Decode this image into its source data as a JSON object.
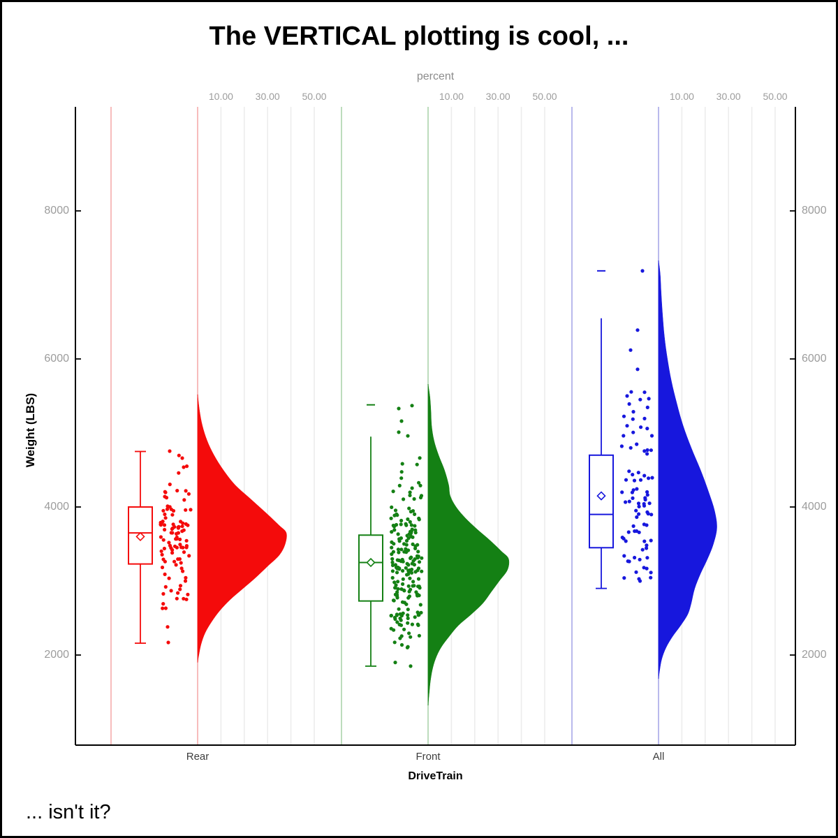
{
  "title": "The VERTICAL plotting is cool, ...",
  "footnote": "... isn't it?",
  "x_axis": {
    "label": "DriveTrain"
  },
  "y_axis": {
    "label": "Weight (LBS)",
    "ticks": [
      {
        "value": 2000,
        "label": "2000"
      },
      {
        "value": 4000,
        "label": "4000"
      },
      {
        "value": 6000,
        "label": "6000"
      },
      {
        "value": 8000,
        "label": "8000"
      }
    ]
  },
  "percent_axis": {
    "label": "percent",
    "ticks": [
      {
        "value": 10,
        "label": "10.00"
      },
      {
        "value": 30,
        "label": "30.00"
      },
      {
        "value": 50,
        "label": "50.00"
      }
    ],
    "gridline_step_pct": 10,
    "gridline_max_pct": 50
  },
  "colors": {
    "axis": "#000000",
    "grid_gray": "#ececec",
    "tick_text": "#9c9c9c",
    "category_text": "#3d3d3d"
  },
  "chart_data": {
    "type": "raincloud (vertical half-violin + box plot + jittered points)",
    "title": "The VERTICAL plotting is cool, ...",
    "xlabel": "DriveTrain",
    "ylabel": "Weight (LBS)",
    "ylim": [
      1200,
      9400
    ],
    "y_ticks": [
      2000,
      4000,
      6000,
      8000
    ],
    "percent_ticks": [
      10,
      30,
      50
    ],
    "categories": [
      "Rear",
      "Front",
      "All"
    ],
    "groups": [
      {
        "label": "Rear",
        "color": "#f40b0b",
        "light_color": "#f7bcbc",
        "n_points": 100,
        "box": {
          "whisker_low": 2160,
          "q1": 3230,
          "median": 3650,
          "q3": 4000,
          "whisker_high": 4750,
          "mean": 3600
        },
        "whisker_caps": {
          "top": true,
          "bottom": true
        },
        "outlier_dashes": [],
        "notable_points": [
          [
            4755,
            -40
          ],
          [
            4660,
            -22
          ],
          [
            2380,
            -43
          ],
          [
            2170,
            -42
          ]
        ],
        "jitter_clamp": [
          2200,
          4700
        ],
        "jitter_seed": 11,
        "violin_profile": [
          [
            5520,
            0
          ],
          [
            5300,
            0.8
          ],
          [
            5100,
            2
          ],
          [
            4900,
            4
          ],
          [
            4700,
            7
          ],
          [
            4500,
            11
          ],
          [
            4300,
            16
          ],
          [
            4100,
            23
          ],
          [
            3900,
            30
          ],
          [
            3750,
            35
          ],
          [
            3650,
            38
          ],
          [
            3500,
            37.5
          ],
          [
            3350,
            35
          ],
          [
            3200,
            30
          ],
          [
            3050,
            25
          ],
          [
            2900,
            19.5
          ],
          [
            2750,
            14
          ],
          [
            2600,
            9.5
          ],
          [
            2450,
            6
          ],
          [
            2300,
            3.2
          ],
          [
            2150,
            1.5
          ],
          [
            2000,
            0.5
          ],
          [
            1900,
            0
          ]
        ]
      },
      {
        "label": "Front",
        "color": "#148014",
        "light_color": "#bcdcbc",
        "n_points": 200,
        "box": {
          "whisker_low": 1850,
          "q1": 2730,
          "median": 3250,
          "q3": 3620,
          "whisker_high": 4950,
          "mean": 3250
        },
        "whisker_caps": {
          "top": false,
          "bottom": true
        },
        "outlier_dashes": [
          5380
        ],
        "notable_points": [
          [
            5370,
            -23
          ],
          [
            5330,
            -42
          ],
          [
            5160,
            -38
          ],
          [
            5010,
            -42
          ],
          [
            4960,
            -29
          ],
          [
            1850,
            -25
          ],
          [
            1900,
            -47
          ]
        ],
        "jitter_clamp": [
          1950,
          4900
        ],
        "jitter_seed": 22,
        "violin_profile": [
          [
            5660,
            0
          ],
          [
            5480,
            0.8
          ],
          [
            5300,
            1.2
          ],
          [
            5100,
            1.5
          ],
          [
            4900,
            2.5
          ],
          [
            4700,
            4.5
          ],
          [
            4500,
            7
          ],
          [
            4300,
            8.8
          ],
          [
            4150,
            9.5
          ],
          [
            4000,
            12
          ],
          [
            3850,
            16
          ],
          [
            3700,
            21
          ],
          [
            3550,
            26.5
          ],
          [
            3400,
            31.5
          ],
          [
            3300,
            34.5
          ],
          [
            3150,
            34
          ],
          [
            3000,
            30.5
          ],
          [
            2850,
            27
          ],
          [
            2700,
            23.5
          ],
          [
            2550,
            18.5
          ],
          [
            2400,
            13
          ],
          [
            2250,
            9
          ],
          [
            2100,
            5.5
          ],
          [
            1950,
            3.2
          ],
          [
            1800,
            1.8
          ],
          [
            1650,
            1
          ],
          [
            1500,
            0.5
          ],
          [
            1320,
            0
          ]
        ]
      },
      {
        "label": "All",
        "color": "#1717dd",
        "light_color": "#b9b9ec",
        "n_points": 82,
        "box": {
          "whisker_low": 2900,
          "q1": 3450,
          "median": 3900,
          "q3": 4700,
          "whisker_high": 6550,
          "mean": 4150
        },
        "whisker_caps": {
          "top": false,
          "bottom": true
        },
        "outlier_dashes": [
          7190
        ],
        "notable_points": [
          [
            7190,
            -23
          ],
          [
            6390,
            -30
          ],
          [
            6120,
            -40
          ],
          [
            5860,
            -30
          ],
          [
            5550,
            -20
          ],
          [
            5500,
            -45
          ]
        ],
        "jitter_clamp": [
          2950,
          5600
        ],
        "jitter_seed": 33,
        "violin_profile": [
          [
            7330,
            0
          ],
          [
            7150,
            0.7
          ],
          [
            6900,
            1.1
          ],
          [
            6600,
            1.7
          ],
          [
            6300,
            2.5
          ],
          [
            6000,
            3.8
          ],
          [
            5700,
            5.5
          ],
          [
            5400,
            7.8
          ],
          [
            5100,
            10.5
          ],
          [
            4800,
            14
          ],
          [
            4500,
            18
          ],
          [
            4200,
            21.5
          ],
          [
            3950,
            24
          ],
          [
            3720,
            25
          ],
          [
            3500,
            23.5
          ],
          [
            3300,
            21
          ],
          [
            3100,
            18
          ],
          [
            2900,
            15.5
          ],
          [
            2700,
            14
          ],
          [
            2550,
            12.5
          ],
          [
            2400,
            9.5
          ],
          [
            2250,
            6
          ],
          [
            2100,
            3.2
          ],
          [
            1950,
            1.4
          ],
          [
            1800,
            0.5
          ],
          [
            1680,
            0
          ]
        ]
      }
    ]
  }
}
